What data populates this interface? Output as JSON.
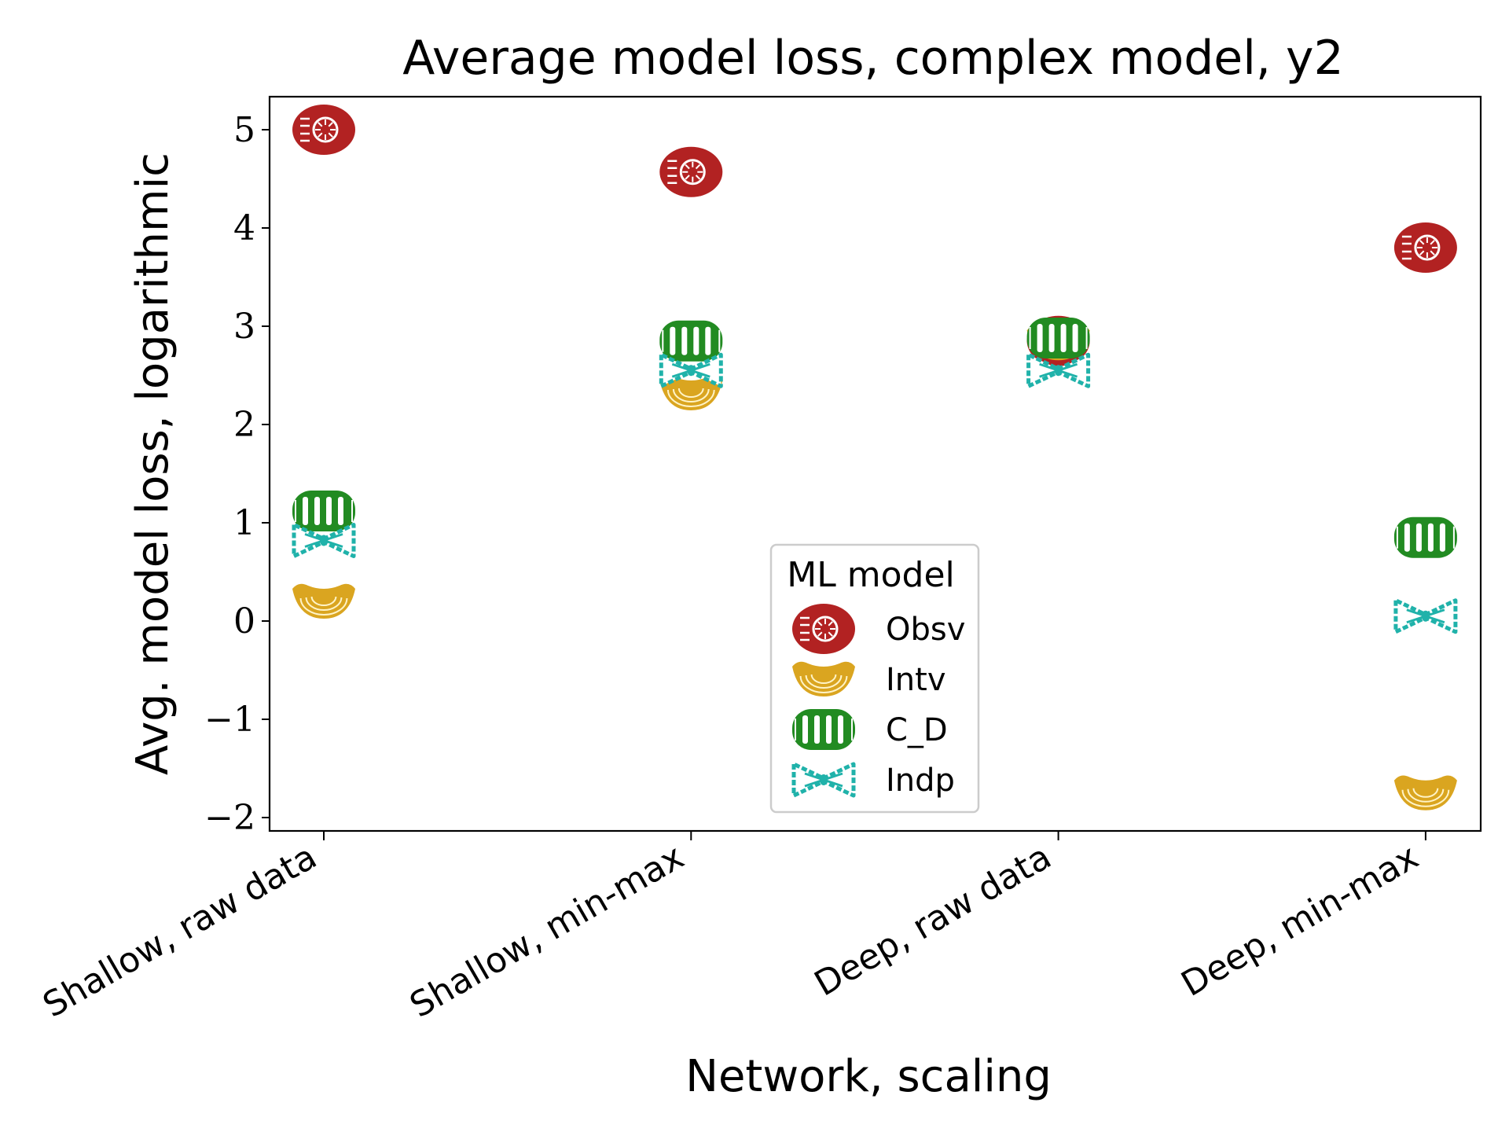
{
  "chart_data": {
    "type": "scatter",
    "title": "Average model loss, complex model, y2",
    "xlabel": "Network, scaling",
    "ylabel": "Avg. model loss, logarithmic",
    "categories": [
      "Shallow, raw data",
      "Shallow, min-max",
      "Deep, raw data",
      "Deep, min-max"
    ],
    "ylim": [
      -2.3,
      5.3
    ],
    "yticks": [
      -2,
      -1,
      0,
      1,
      2,
      3,
      4,
      5
    ],
    "ytick_labels": [
      "−2",
      "−1",
      "0",
      "1",
      "2",
      "3",
      "4",
      "5"
    ],
    "grid": false,
    "legend": {
      "title": "ML model",
      "placement": "bottom-center"
    },
    "series": [
      {
        "name": "Obsv",
        "color": "#b22222",
        "marker": "rotelle-pasta-icon",
        "values": [
          5.0,
          4.57,
          2.85,
          3.8
        ]
      },
      {
        "name": "Intv",
        "color": "#daa520",
        "marker": "macaroni-pasta-icon",
        "values": [
          0.2,
          2.32,
          2.83,
          -1.75
        ]
      },
      {
        "name": "C_D",
        "color": "#228b22",
        "marker": "radiatori-pasta-icon",
        "values": [
          1.12,
          2.85,
          2.88,
          0.85
        ]
      },
      {
        "name": "Indp",
        "color": "#20b2aa",
        "marker": "farfalle-pasta-icon",
        "values": [
          0.82,
          2.55,
          2.55,
          0.05
        ]
      }
    ]
  }
}
